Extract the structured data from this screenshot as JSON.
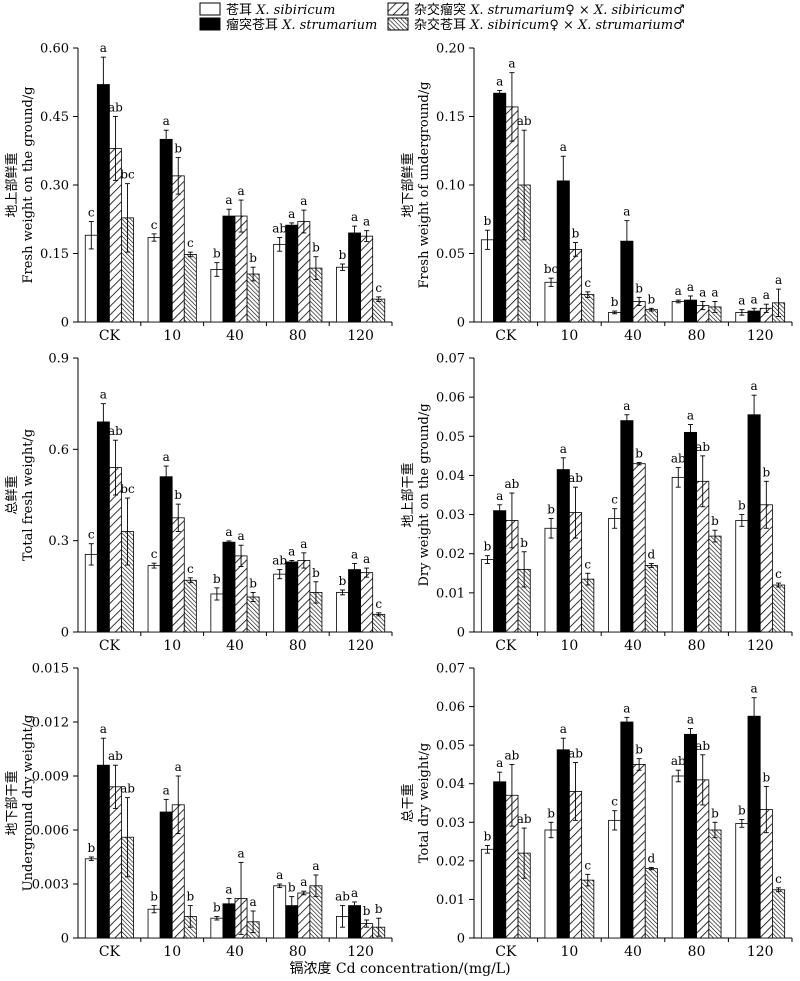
{
  "legend": {
    "entries": [
      {
        "cn": "苍耳",
        "sp": "X. sibiricum",
        "pattern": "white"
      },
      {
        "cn": "瘤突苍耳",
        "sp": "X. strumarium",
        "pattern": "black"
      },
      {
        "cn": "杂交瘤突",
        "sp": "X. strumarium♀ × X. sibiricum♂",
        "pattern": "hatch"
      },
      {
        "cn": "杂交苍耳",
        "sp": "X. sibiricum♀ × X. strumarium♂",
        "pattern": "dense"
      }
    ]
  },
  "x_axis_title": "镉浓度 Cd concentration/(mg/L)",
  "chart_data": [
    {
      "type": "bar",
      "ylabel_cn": "地上部鲜重",
      "ylabel_en": "Fresh weight on the ground/g",
      "ylim": [
        0,
        0.6
      ],
      "yticks": [
        "0",
        "0.15",
        "0.30",
        "0.45",
        "0.60"
      ],
      "yticks_values": [
        0,
        0.15,
        0.3,
        0.45,
        0.6
      ],
      "categories": [
        "CK",
        "10",
        "40",
        "80",
        "120"
      ],
      "series": [
        {
          "values": [
            0.19,
            0.185,
            0.115,
            0.17,
            0.12
          ],
          "errors": [
            0.03,
            0.008,
            0.015,
            0.015,
            0.007
          ],
          "letters": [
            "c",
            "c",
            "b",
            "ab",
            "b"
          ]
        },
        {
          "values": [
            0.52,
            0.4,
            0.232,
            0.212,
            0.195
          ],
          "errors": [
            0.06,
            0.02,
            0.015,
            0.005,
            0.015
          ],
          "letters": [
            "a",
            "a",
            "a",
            "a",
            "a"
          ]
        },
        {
          "values": [
            0.38,
            0.32,
            0.232,
            0.22,
            0.188
          ],
          "errors": [
            0.07,
            0.04,
            0.035,
            0.025,
            0.012
          ],
          "letters": [
            "ab",
            "b",
            "a",
            "a",
            "a"
          ]
        },
        {
          "values": [
            0.228,
            0.148,
            0.105,
            0.118,
            0.05
          ],
          "errors": [
            0.075,
            0.005,
            0.015,
            0.025,
            0.005
          ],
          "letters": [
            "bc",
            "c",
            "b",
            "b",
            "c"
          ]
        }
      ]
    },
    {
      "type": "bar",
      "ylabel_cn": "地下部鲜重",
      "ylabel_en": "Fresh weight of underground/g",
      "ylim": [
        0,
        0.2
      ],
      "yticks": [
        "0",
        "0.05",
        "0.10",
        "0.15",
        "0.20"
      ],
      "yticks_values": [
        0,
        0.05,
        0.1,
        0.15,
        0.2
      ],
      "categories": [
        "CK",
        "10",
        "40",
        "80",
        "120"
      ],
      "series": [
        {
          "values": [
            0.06,
            0.029,
            0.007,
            0.015,
            0.007
          ],
          "errors": [
            0.007,
            0.003,
            0.001,
            0.001,
            0.002
          ],
          "letters": [
            "b",
            "bc",
            "b",
            "a",
            "a"
          ]
        },
        {
          "values": [
            0.167,
            0.103,
            0.059,
            0.016,
            0.008
          ],
          "errors": [
            0.002,
            0.018,
            0.015,
            0.003,
            0.002
          ],
          "letters": [
            "a",
            "a",
            "a",
            "a",
            "a"
          ]
        },
        {
          "values": [
            0.157,
            0.053,
            0.015,
            0.012,
            0.01
          ],
          "errors": [
            0.025,
            0.005,
            0.003,
            0.003,
            0.003
          ],
          "letters": [
            "a",
            "b",
            "b",
            "a",
            "a"
          ]
        },
        {
          "values": [
            0.1,
            0.02,
            0.009,
            0.011,
            0.014
          ],
          "errors": [
            0.04,
            0.002,
            0.001,
            0.004,
            0.01
          ],
          "letters": [
            "ab",
            "c",
            "b",
            "a",
            "a"
          ]
        }
      ]
    },
    {
      "type": "bar",
      "ylabel_cn": "总鲜重",
      "ylabel_en": "Total fresh weight/g",
      "ylim": [
        0,
        0.9
      ],
      "yticks": [
        "0",
        "0.3",
        "0.6",
        "0.9"
      ],
      "yticks_values": [
        0,
        0.3,
        0.6,
        0.9
      ],
      "categories": [
        "CK",
        "10",
        "40",
        "80",
        "120"
      ],
      "series": [
        {
          "values": [
            0.255,
            0.218,
            0.125,
            0.19,
            0.13
          ],
          "errors": [
            0.035,
            0.008,
            0.02,
            0.015,
            0.008
          ],
          "letters": [
            "c",
            "c",
            "b",
            "ab",
            "b"
          ]
        },
        {
          "values": [
            0.69,
            0.51,
            0.295,
            0.23,
            0.205
          ],
          "errors": [
            0.06,
            0.035,
            0.004,
            0.005,
            0.02
          ],
          "letters": [
            "a",
            "a",
            "a",
            "a",
            "a"
          ]
        },
        {
          "values": [
            0.54,
            0.375,
            0.25,
            0.235,
            0.195
          ],
          "errors": [
            0.09,
            0.045,
            0.035,
            0.025,
            0.015
          ],
          "letters": [
            "ab",
            "b",
            "a",
            "a",
            "a"
          ]
        },
        {
          "values": [
            0.33,
            0.17,
            0.115,
            0.13,
            0.058
          ],
          "errors": [
            0.11,
            0.008,
            0.015,
            0.035,
            0.005
          ],
          "letters": [
            "bc",
            "c",
            "b",
            "b",
            "c"
          ]
        }
      ]
    },
    {
      "type": "bar",
      "ylabel_cn": "地上部干重",
      "ylabel_en": "Dry weight on the ground/g",
      "ylim": [
        0,
        0.07
      ],
      "yticks": [
        "0",
        "0.01",
        "0.02",
        "0.03",
        "0.04",
        "0.05",
        "0.06",
        "0.07"
      ],
      "yticks_values": [
        0,
        0.01,
        0.02,
        0.03,
        0.04,
        0.05,
        0.06,
        0.07
      ],
      "categories": [
        "CK",
        "10",
        "40",
        "80",
        "120"
      ],
      "series": [
        {
          "values": [
            0.0185,
            0.0265,
            0.029,
            0.0395,
            0.0285
          ],
          "errors": [
            0.001,
            0.0025,
            0.0025,
            0.0025,
            0.0015
          ],
          "letters": [
            "b",
            "b",
            "c",
            "ab",
            "b"
          ]
        },
        {
          "values": [
            0.031,
            0.0415,
            0.054,
            0.051,
            0.0555
          ],
          "errors": [
            0.0015,
            0.003,
            0.0015,
            0.002,
            0.005
          ],
          "letters": [
            "a",
            "a",
            "a",
            "a",
            "a"
          ]
        },
        {
          "values": [
            0.0285,
            0.0305,
            0.043,
            0.0385,
            0.0325
          ],
          "errors": [
            0.007,
            0.0065,
            0.0003,
            0.0065,
            0.006
          ],
          "letters": [
            "ab",
            "ab",
            "b",
            "ab",
            "b"
          ]
        },
        {
          "values": [
            0.016,
            0.0135,
            0.017,
            0.0245,
            0.012
          ],
          "errors": [
            0.0045,
            0.0015,
            0.0005,
            0.0015,
            0.0005
          ],
          "letters": [
            "b",
            "c",
            "d",
            "b",
            "c"
          ]
        }
      ]
    },
    {
      "type": "bar",
      "ylabel_cn": "地下部干重",
      "ylabel_en": "Underground dry weight/g",
      "ylim": [
        0,
        0.015
      ],
      "yticks": [
        "0",
        "0.003",
        "0.006",
        "0.009",
        "0.012",
        "0.015"
      ],
      "yticks_values": [
        0,
        0.003,
        0.006,
        0.009,
        0.012,
        0.015
      ],
      "categories": [
        "CK",
        "10",
        "40",
        "80",
        "120"
      ],
      "series": [
        {
          "values": [
            0.0044,
            0.0016,
            0.0011,
            0.0029,
            0.0012
          ],
          "errors": [
            0.0001,
            0.0002,
            0.0001,
            0.0001,
            0.0006
          ],
          "letters": [
            "b",
            "b",
            "b",
            "a",
            "ab"
          ]
        },
        {
          "values": [
            0.0096,
            0.007,
            0.0019,
            0.0018,
            0.0018
          ],
          "errors": [
            0.0015,
            0.0007,
            0.0003,
            0.0005,
            0.0002
          ],
          "letters": [
            "a",
            "a",
            "a",
            "b",
            "a"
          ]
        },
        {
          "values": [
            0.0084,
            0.0074,
            0.0022,
            0.0025,
            0.0008
          ],
          "errors": [
            0.0012,
            0.0016,
            0.002,
            0.0001,
            0.0002
          ],
          "letters": [
            "ab",
            "a",
            "a",
            "a",
            "b"
          ]
        },
        {
          "values": [
            0.0056,
            0.0012,
            0.0009,
            0.0029,
            0.0006
          ],
          "errors": [
            0.0022,
            0.0006,
            0.0006,
            0.0006,
            0.0005
          ],
          "letters": [
            "ab",
            "b",
            "a",
            "a",
            "b"
          ]
        }
      ]
    },
    {
      "type": "bar",
      "ylabel_cn": "总干重",
      "ylabel_en": "Total dry weight/g",
      "ylim": [
        0,
        0.07
      ],
      "yticks": [
        "0",
        "0.01",
        "0.02",
        "0.03",
        "0.04",
        "0.05",
        "0.06",
        "0.07"
      ],
      "yticks_values": [
        0,
        0.01,
        0.02,
        0.03,
        0.04,
        0.05,
        0.06,
        0.07
      ],
      "categories": [
        "CK",
        "10",
        "40",
        "80",
        "120"
      ],
      "series": [
        {
          "values": [
            0.023,
            0.028,
            0.0305,
            0.042,
            0.0297
          ],
          "errors": [
            0.001,
            0.002,
            0.0025,
            0.0015,
            0.001
          ],
          "letters": [
            "b",
            "b",
            "c",
            "ab",
            "b"
          ]
        },
        {
          "values": [
            0.0405,
            0.0488,
            0.056,
            0.0528,
            0.0575
          ],
          "errors": [
            0.0025,
            0.003,
            0.0012,
            0.0015,
            0.0048
          ],
          "letters": [
            "a",
            "a",
            "a",
            "a",
            "a"
          ]
        },
        {
          "values": [
            0.037,
            0.038,
            0.045,
            0.041,
            0.0333
          ],
          "errors": [
            0.008,
            0.0075,
            0.0015,
            0.0065,
            0.006
          ],
          "letters": [
            "ab",
            "ab",
            "b",
            "ab",
            "b"
          ]
        },
        {
          "values": [
            0.022,
            0.015,
            0.018,
            0.028,
            0.0125
          ],
          "errors": [
            0.0065,
            0.0015,
            0.0003,
            0.002,
            0.0005
          ],
          "letters": [
            "ab",
            "c",
            "d",
            "b",
            "c"
          ]
        }
      ]
    }
  ]
}
